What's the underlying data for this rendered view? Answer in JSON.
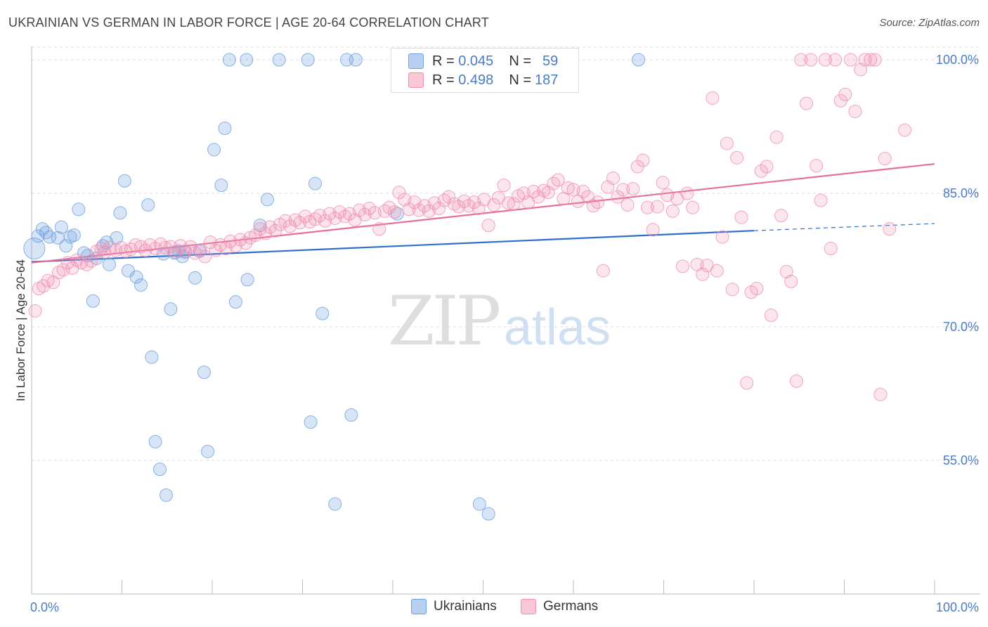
{
  "title": "UKRAINIAN VS GERMAN IN LABOR FORCE | AGE 20-64 CORRELATION CHART",
  "source": "Source: ZipAtlas.com",
  "watermark": "ZIPatlas",
  "legend": {
    "rows": [
      {
        "r_label": "R =",
        "r_value": "0.045",
        "n_label": "N =",
        "n_value": "59",
        "color": "#6fa0e0"
      },
      {
        "r_label": "R =",
        "r_value": "0.498",
        "n_label": "N =",
        "n_value": "187",
        "color": "#f08fb0"
      }
    ]
  },
  "bottom_legend": [
    "Ukrainians",
    "Germans"
  ],
  "chart_data": {
    "type": "scatter",
    "title": "UKRAINIAN VS GERMAN IN LABOR FORCE | AGE 20-64 CORRELATION CHART",
    "xlabel": "",
    "ylabel": "In Labor Force | Age 20-64",
    "xlim": [
      0,
      100
    ],
    "ylim": [
      40,
      101.5
    ],
    "x_tick_labels": [
      "0.0%",
      "100.0%"
    ],
    "y_ticks": [
      55,
      70,
      85,
      100
    ],
    "y_tick_labels": [
      "55.0%",
      "70.0%",
      "85.0%",
      "100.0%"
    ],
    "grid": true,
    "series": [
      {
        "name": "Ukrainians",
        "color": "#6fa0e0",
        "trend": {
          "x": [
            0,
            80
          ],
          "y": [
            77.3,
            80.8
          ],
          "dashed_to": [
            100,
            81.6
          ]
        },
        "points": [
          [
            0.3,
            78.8
          ],
          [
            0.7,
            80.2
          ],
          [
            1.2,
            81.0
          ],
          [
            1.6,
            80.6
          ],
          [
            2.0,
            80.1
          ],
          [
            2.9,
            80.0
          ],
          [
            3.3,
            81.2
          ],
          [
            3.8,
            79.1
          ],
          [
            4.3,
            80.1
          ],
          [
            4.7,
            80.3
          ],
          [
            5.2,
            83.2
          ],
          [
            5.8,
            78.3
          ],
          [
            6.2,
            78.0
          ],
          [
            6.8,
            72.9
          ],
          [
            7.2,
            77.7
          ],
          [
            7.9,
            79.1
          ],
          [
            8.3,
            79.5
          ],
          [
            8.6,
            77.0
          ],
          [
            9.4,
            80.0
          ],
          [
            9.8,
            82.8
          ],
          [
            10.3,
            86.4
          ],
          [
            10.7,
            76.3
          ],
          [
            11.6,
            75.6
          ],
          [
            12.1,
            74.7
          ],
          [
            12.9,
            83.7
          ],
          [
            13.3,
            66.6
          ],
          [
            13.7,
            57.1
          ],
          [
            14.2,
            54.0
          ],
          [
            14.6,
            78.2
          ],
          [
            14.9,
            51.1
          ],
          [
            15.4,
            72.0
          ],
          [
            15.8,
            78.3
          ],
          [
            16.3,
            78.5
          ],
          [
            16.7,
            77.9
          ],
          [
            17.0,
            78.4
          ],
          [
            18.1,
            75.5
          ],
          [
            18.6,
            78.5
          ],
          [
            19.1,
            64.9
          ],
          [
            19.5,
            56.0
          ],
          [
            20.2,
            89.9
          ],
          [
            21.0,
            85.9
          ],
          [
            21.4,
            92.3
          ],
          [
            21.9,
            100.0
          ],
          [
            22.6,
            72.8
          ],
          [
            23.8,
            100.0
          ],
          [
            23.9,
            75.3
          ],
          [
            25.3,
            81.4
          ],
          [
            26.1,
            84.3
          ],
          [
            27.4,
            100.0
          ],
          [
            30.6,
            100.0
          ],
          [
            30.9,
            59.3
          ],
          [
            31.4,
            86.1
          ],
          [
            32.2,
            71.5
          ],
          [
            33.6,
            50.1
          ],
          [
            34.9,
            100.0
          ],
          [
            35.4,
            60.1
          ],
          [
            35.9,
            100.0
          ],
          [
            40.5,
            82.7
          ],
          [
            49.6,
            50.1
          ],
          [
            50.6,
            49.0
          ],
          [
            67.2,
            100.0
          ]
        ]
      },
      {
        "name": "Germans",
        "color": "#f08fb0",
        "trend": {
          "x": [
            0,
            100
          ],
          "y": [
            77.2,
            88.3
          ]
        },
        "points": [
          [
            0.4,
            71.8
          ],
          [
            0.8,
            74.3
          ],
          [
            1.3,
            74.6
          ],
          [
            1.8,
            75.2
          ],
          [
            2.4,
            75.0
          ],
          [
            3.0,
            76.1
          ],
          [
            3.5,
            76.4
          ],
          [
            4.0,
            77.2
          ],
          [
            4.5,
            76.6
          ],
          [
            5.0,
            77.5
          ],
          [
            5.5,
            77.2
          ],
          [
            6.1,
            77.0
          ],
          [
            6.6,
            77.4
          ],
          [
            7.2,
            78.5
          ],
          [
            7.7,
            78.8
          ],
          [
            8.1,
            78.4
          ],
          [
            8.7,
            78.9
          ],
          [
            9.3,
            78.6
          ],
          [
            9.9,
            78.9
          ],
          [
            10.4,
            78.5
          ],
          [
            11.0,
            78.7
          ],
          [
            11.5,
            79.2
          ],
          [
            12.1,
            79.0
          ],
          [
            12.6,
            78.6
          ],
          [
            13.1,
            79.2
          ],
          [
            13.7,
            78.8
          ],
          [
            14.3,
            79.3
          ],
          [
            14.8,
            78.9
          ],
          [
            15.4,
            79.0
          ],
          [
            15.9,
            78.4
          ],
          [
            16.5,
            79.1
          ],
          [
            17.0,
            78.5
          ],
          [
            17.6,
            79.0
          ],
          [
            18.1,
            78.3
          ],
          [
            18.7,
            78.6
          ],
          [
            19.2,
            77.9
          ],
          [
            19.8,
            79.5
          ],
          [
            20.4,
            78.6
          ],
          [
            20.9,
            79.2
          ],
          [
            21.5,
            78.8
          ],
          [
            22.0,
            79.6
          ],
          [
            22.6,
            79.1
          ],
          [
            23.1,
            79.8
          ],
          [
            23.7,
            79.4
          ],
          [
            24.2,
            80.0
          ],
          [
            24.8,
            80.3
          ],
          [
            25.3,
            81.0
          ],
          [
            25.9,
            80.5
          ],
          [
            26.4,
            81.2
          ],
          [
            27.0,
            80.8
          ],
          [
            27.5,
            81.5
          ],
          [
            28.1,
            81.9
          ],
          [
            28.6,
            81.3
          ],
          [
            29.2,
            82.0
          ],
          [
            29.7,
            81.7
          ],
          [
            30.3,
            82.4
          ],
          [
            30.8,
            81.8
          ],
          [
            31.4,
            82.1
          ],
          [
            31.9,
            82.5
          ],
          [
            32.5,
            81.9
          ],
          [
            33.0,
            82.7
          ],
          [
            33.6,
            82.2
          ],
          [
            34.1,
            82.9
          ],
          [
            34.7,
            82.4
          ],
          [
            35.2,
            82.7
          ],
          [
            35.8,
            82.0
          ],
          [
            36.3,
            83.1
          ],
          [
            36.9,
            82.6
          ],
          [
            37.4,
            83.3
          ],
          [
            38.0,
            82.8
          ],
          [
            38.5,
            81.0
          ],
          [
            39.1,
            83.0
          ],
          [
            39.6,
            83.4
          ],
          [
            40.2,
            82.9
          ],
          [
            40.7,
            85.1
          ],
          [
            41.3,
            84.3
          ],
          [
            41.8,
            83.2
          ],
          [
            42.4,
            84.0
          ],
          [
            42.9,
            83.1
          ],
          [
            43.5,
            83.6
          ],
          [
            44.0,
            83.0
          ],
          [
            44.6,
            83.9
          ],
          [
            45.1,
            83.3
          ],
          [
            45.7,
            84.2
          ],
          [
            46.2,
            84.6
          ],
          [
            46.8,
            83.8
          ],
          [
            47.3,
            83.5
          ],
          [
            47.9,
            84.1
          ],
          [
            48.4,
            83.6
          ],
          [
            49.0,
            84.0
          ],
          [
            49.5,
            83.3
          ],
          [
            50.1,
            84.3
          ],
          [
            50.6,
            81.4
          ],
          [
            51.2,
            83.7
          ],
          [
            51.7,
            84.5
          ],
          [
            52.3,
            85.9
          ],
          [
            52.8,
            83.9
          ],
          [
            53.4,
            83.8
          ],
          [
            53.9,
            84.7
          ],
          [
            54.5,
            85.0
          ],
          [
            55.0,
            84.0
          ],
          [
            55.6,
            85.2
          ],
          [
            56.1,
            84.6
          ],
          [
            56.7,
            85.3
          ],
          [
            57.2,
            85.1
          ],
          [
            57.8,
            86.1
          ],
          [
            58.3,
            86.5
          ],
          [
            58.9,
            84.4
          ],
          [
            59.4,
            85.6
          ],
          [
            60.0,
            85.4
          ],
          [
            60.5,
            84.1
          ],
          [
            61.1,
            85.2
          ],
          [
            61.6,
            84.6
          ],
          [
            62.2,
            83.6
          ],
          [
            62.7,
            84.0
          ],
          [
            63.3,
            76.3
          ],
          [
            63.8,
            85.7
          ],
          [
            64.4,
            86.7
          ],
          [
            64.9,
            84.6
          ],
          [
            65.5,
            85.4
          ],
          [
            66.0,
            83.7
          ],
          [
            66.6,
            85.5
          ],
          [
            67.1,
            88.0
          ],
          [
            67.7,
            88.7
          ],
          [
            68.2,
            83.4
          ],
          [
            68.8,
            80.9
          ],
          [
            69.3,
            83.5
          ],
          [
            69.9,
            86.2
          ],
          [
            70.4,
            84.8
          ],
          [
            71.0,
            83.0
          ],
          [
            71.5,
            84.4
          ],
          [
            72.1,
            76.8
          ],
          [
            72.6,
            85.0
          ],
          [
            73.2,
            83.4
          ],
          [
            73.7,
            77.0
          ],
          [
            74.3,
            75.9
          ],
          [
            74.8,
            76.9
          ],
          [
            75.4,
            95.7
          ],
          [
            75.9,
            76.3
          ],
          [
            76.5,
            80.1
          ],
          [
            77.0,
            90.6
          ],
          [
            77.6,
            74.2
          ],
          [
            78.1,
            89.0
          ],
          [
            78.6,
            82.3
          ],
          [
            79.2,
            63.7
          ],
          [
            79.7,
            73.9
          ],
          [
            80.3,
            74.3
          ],
          [
            80.8,
            87.5
          ],
          [
            81.4,
            88.0
          ],
          [
            81.9,
            71.3
          ],
          [
            82.5,
            91.3
          ],
          [
            83.0,
            82.5
          ],
          [
            83.6,
            76.2
          ],
          [
            84.1,
            75.1
          ],
          [
            84.7,
            63.9
          ],
          [
            85.2,
            100.0
          ],
          [
            85.8,
            95.1
          ],
          [
            86.3,
            100.0
          ],
          [
            86.9,
            88.1
          ],
          [
            87.4,
            84.2
          ],
          [
            87.9,
            100.0
          ],
          [
            88.5,
            78.8
          ],
          [
            89.0,
            100.0
          ],
          [
            89.6,
            95.4
          ],
          [
            90.1,
            96.1
          ],
          [
            90.7,
            100.0
          ],
          [
            91.2,
            94.2
          ],
          [
            91.8,
            98.9
          ],
          [
            92.3,
            100.0
          ],
          [
            92.9,
            100.0
          ],
          [
            93.4,
            100.0
          ],
          [
            94.0,
            62.4
          ],
          [
            94.5,
            88.9
          ],
          [
            95.0,
            81.0
          ],
          [
            96.7,
            92.1
          ]
        ]
      }
    ]
  }
}
